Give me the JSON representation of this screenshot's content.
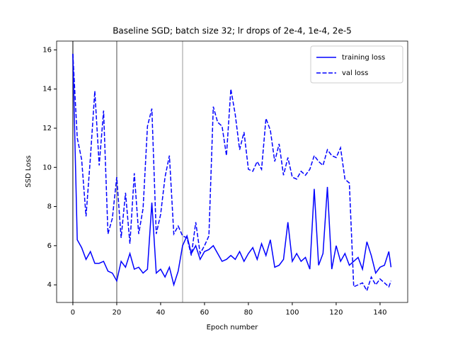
{
  "chart_data": {
    "type": "line",
    "title": "Baseline SGD; batch size 32; lr drops of 2e-4, 1e-4, 2e-5",
    "x_label": "Epoch number",
    "y_label": "SSD Loss",
    "x": [
      0,
      2,
      4,
      6,
      8,
      10,
      12,
      14,
      16,
      18,
      20,
      22,
      24,
      26,
      28,
      30,
      32,
      34,
      36,
      38,
      40,
      42,
      44,
      46,
      48,
      50,
      52,
      54,
      56,
      58,
      60,
      62,
      64,
      66,
      68,
      70,
      72,
      74,
      76,
      78,
      80,
      82,
      84,
      86,
      88,
      90,
      92,
      94,
      96,
      98,
      100,
      102,
      104,
      106,
      108,
      110,
      112,
      114,
      116,
      118,
      120,
      122,
      124,
      126,
      128,
      130,
      132,
      134,
      136,
      138,
      140,
      142,
      144,
      145
    ],
    "series": [
      {
        "name": "training loss",
        "color": "#0000ff",
        "dash": false,
        "values": [
          15.8,
          6.3,
          5.9,
          5.3,
          5.7,
          5.1,
          5.1,
          5.2,
          4.7,
          4.6,
          4.2,
          5.2,
          4.9,
          5.6,
          4.8,
          4.9,
          4.6,
          4.8,
          8.2,
          4.6,
          4.8,
          4.4,
          4.9,
          4.0,
          4.7,
          6.0,
          6.5,
          5.6,
          6.0,
          5.3,
          5.7,
          5.8,
          6.0,
          5.6,
          5.2,
          5.3,
          5.5,
          5.3,
          5.7,
          5.2,
          5.6,
          5.9,
          5.3,
          6.1,
          5.5,
          6.3,
          4.9,
          5.0,
          5.3,
          7.2,
          5.2,
          5.6,
          5.2,
          5.4,
          4.8,
          8.9,
          5.0,
          5.6,
          9.0,
          4.8,
          6.0,
          5.2,
          5.6,
          5.0,
          5.2,
          5.4,
          4.8,
          6.2,
          5.5,
          4.6,
          4.9,
          5.0,
          5.7,
          4.9
        ]
      },
      {
        "name": "val loss",
        "color": "#0000ff",
        "dash": true,
        "values": [
          15.8,
          11.5,
          10.4,
          7.5,
          10.5,
          13.9,
          10.1,
          12.9,
          6.6,
          7.4,
          9.5,
          6.4,
          8.7,
          6.1,
          9.7,
          6.6,
          7.9,
          12.1,
          13.0,
          6.6,
          7.6,
          9.5,
          10.6,
          6.6,
          7.0,
          6.5,
          6.4,
          5.5,
          7.2,
          5.6,
          6.0,
          6.5,
          13.1,
          12.3,
          12.1,
          10.6,
          14.0,
          12.7,
          10.9,
          11.8,
          9.9,
          9.8,
          10.3,
          9.9,
          12.5,
          11.9,
          10.3,
          11.2,
          9.6,
          10.5,
          9.5,
          9.4,
          9.8,
          9.6,
          9.9,
          10.6,
          10.3,
          10.1,
          10.9,
          10.6,
          10.5,
          11.0,
          9.4,
          9.2,
          3.9,
          4.0,
          4.1,
          3.7,
          4.4,
          4.0,
          4.3,
          4.1,
          3.9,
          4.2
        ]
      }
    ],
    "vlines": [
      0,
      20,
      50
    ],
    "vline_colors": [
      "#555555",
      "#888888",
      "#bbbbbb"
    ],
    "xlim": [
      -7.4,
      152.6
    ],
    "xticks": [
      0,
      20,
      40,
      60,
      80,
      100,
      120,
      140
    ],
    "ylim": [
      3.1,
      16.45
    ],
    "yticks": [
      4,
      6,
      8,
      10,
      12,
      14,
      16
    ],
    "legend": "upper right"
  }
}
